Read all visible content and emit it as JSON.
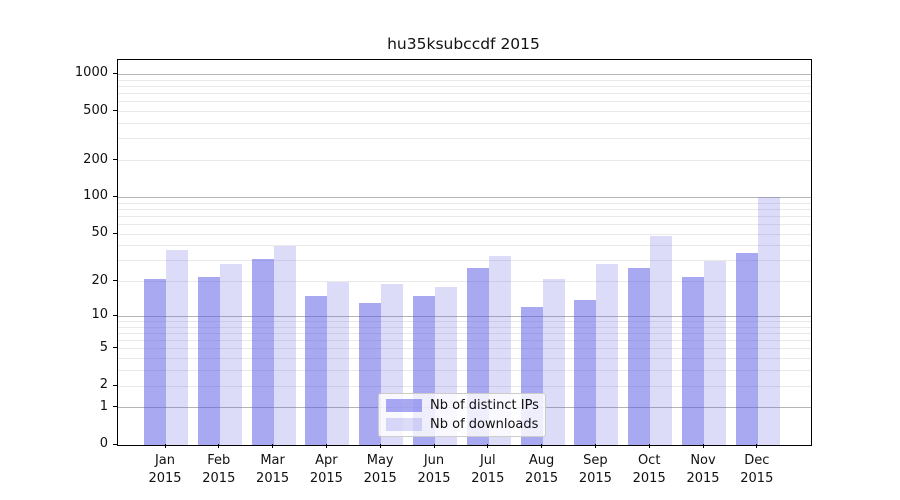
{
  "figure": {
    "title": "hu35ksubccdf 2015"
  },
  "chart_data": {
    "type": "bar",
    "title": "hu35ksubccdf 2015",
    "categories": [
      "Jan",
      "Feb",
      "Mar",
      "Apr",
      "May",
      "Jun",
      "Jul",
      "Aug",
      "Sep",
      "Oct",
      "Nov",
      "Dec"
    ],
    "year_label": "2015",
    "series": [
      {
        "name": "Nb of distinct IPs",
        "color": "#a9a9f2",
        "fill_rgba": "rgba(83,83,229,0.5)",
        "values": [
          21,
          22,
          31,
          15,
          13,
          15,
          26,
          12,
          14,
          26,
          22,
          35
        ]
      },
      {
        "name": "Nb of downloads",
        "color": "#dcdcf9",
        "fill_rgba": "rgba(96,96,228,0.22)",
        "values": [
          37,
          28,
          40,
          20,
          19,
          18,
          33,
          21,
          28,
          48,
          30,
          100
        ]
      }
    ],
    "yscale": "log1p",
    "ylim": [
      0,
      1300
    ],
    "yticks": [
      1000,
      500,
      200,
      100,
      50,
      20,
      10,
      5,
      2,
      1,
      0
    ],
    "grid_major": [
      1,
      10,
      100,
      1000
    ],
    "grid_minor": [
      2,
      3,
      4,
      5,
      6,
      7,
      8,
      9,
      20,
      30,
      40,
      50,
      60,
      70,
      80,
      90,
      200,
      300,
      400,
      500,
      600,
      700,
      800,
      900
    ],
    "grid_on": true,
    "legend": {
      "position": "lower-center",
      "entries": [
        "Nb of distinct IPs",
        "Nb of downloads"
      ]
    },
    "colors": {
      "grid_major": "#b4b4b4",
      "grid_minor": "#e9e9e9",
      "spine": "#000000",
      "text": "#111111",
      "legend_border": "#cccccc",
      "background": "#ffffff"
    }
  }
}
